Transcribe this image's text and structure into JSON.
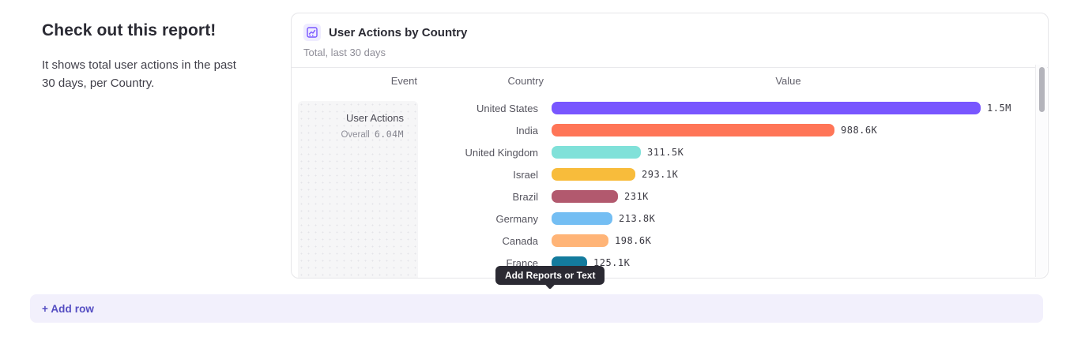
{
  "intro": {
    "title": "Check out this report!",
    "body": "It shows total user actions in the past 30 days, per Country."
  },
  "card": {
    "title": "User Actions by Country",
    "subtitle": "Total, last 30 days",
    "icon": "line-chart-icon",
    "accent_color": "#7856ff",
    "columns": {
      "event": "Event",
      "country": "Country",
      "value": "Value"
    },
    "event": {
      "name": "User Actions",
      "aggregation": "Overall",
      "total": "6.04M"
    }
  },
  "chart_data": {
    "type": "bar",
    "orientation": "horizontal",
    "title": "User Actions by Country",
    "series_name": "User Actions",
    "categories": [
      "United States",
      "India",
      "United Kingdom",
      "Israel",
      "Brazil",
      "Germany",
      "Canada",
      "France"
    ],
    "values": [
      1500000,
      988600,
      311500,
      293100,
      231000,
      213800,
      198600,
      125100
    ],
    "value_labels": [
      "1.5M",
      "988.6K",
      "311.5K",
      "293.1K",
      "231K",
      "213.8K",
      "198.6K",
      "125.1K"
    ],
    "bar_colors": [
      "#7856FF",
      "#FF7557",
      "#80E1D9",
      "#F8BC3B",
      "#B2596E",
      "#74BEF3",
      "#FFB477",
      "#137B9D"
    ],
    "xlim": [
      0,
      1500000
    ],
    "grid": false,
    "legend": false
  },
  "tooltip": {
    "label": "Add Reports or Text"
  },
  "footer": {
    "add_row_label": "+ Add row"
  }
}
